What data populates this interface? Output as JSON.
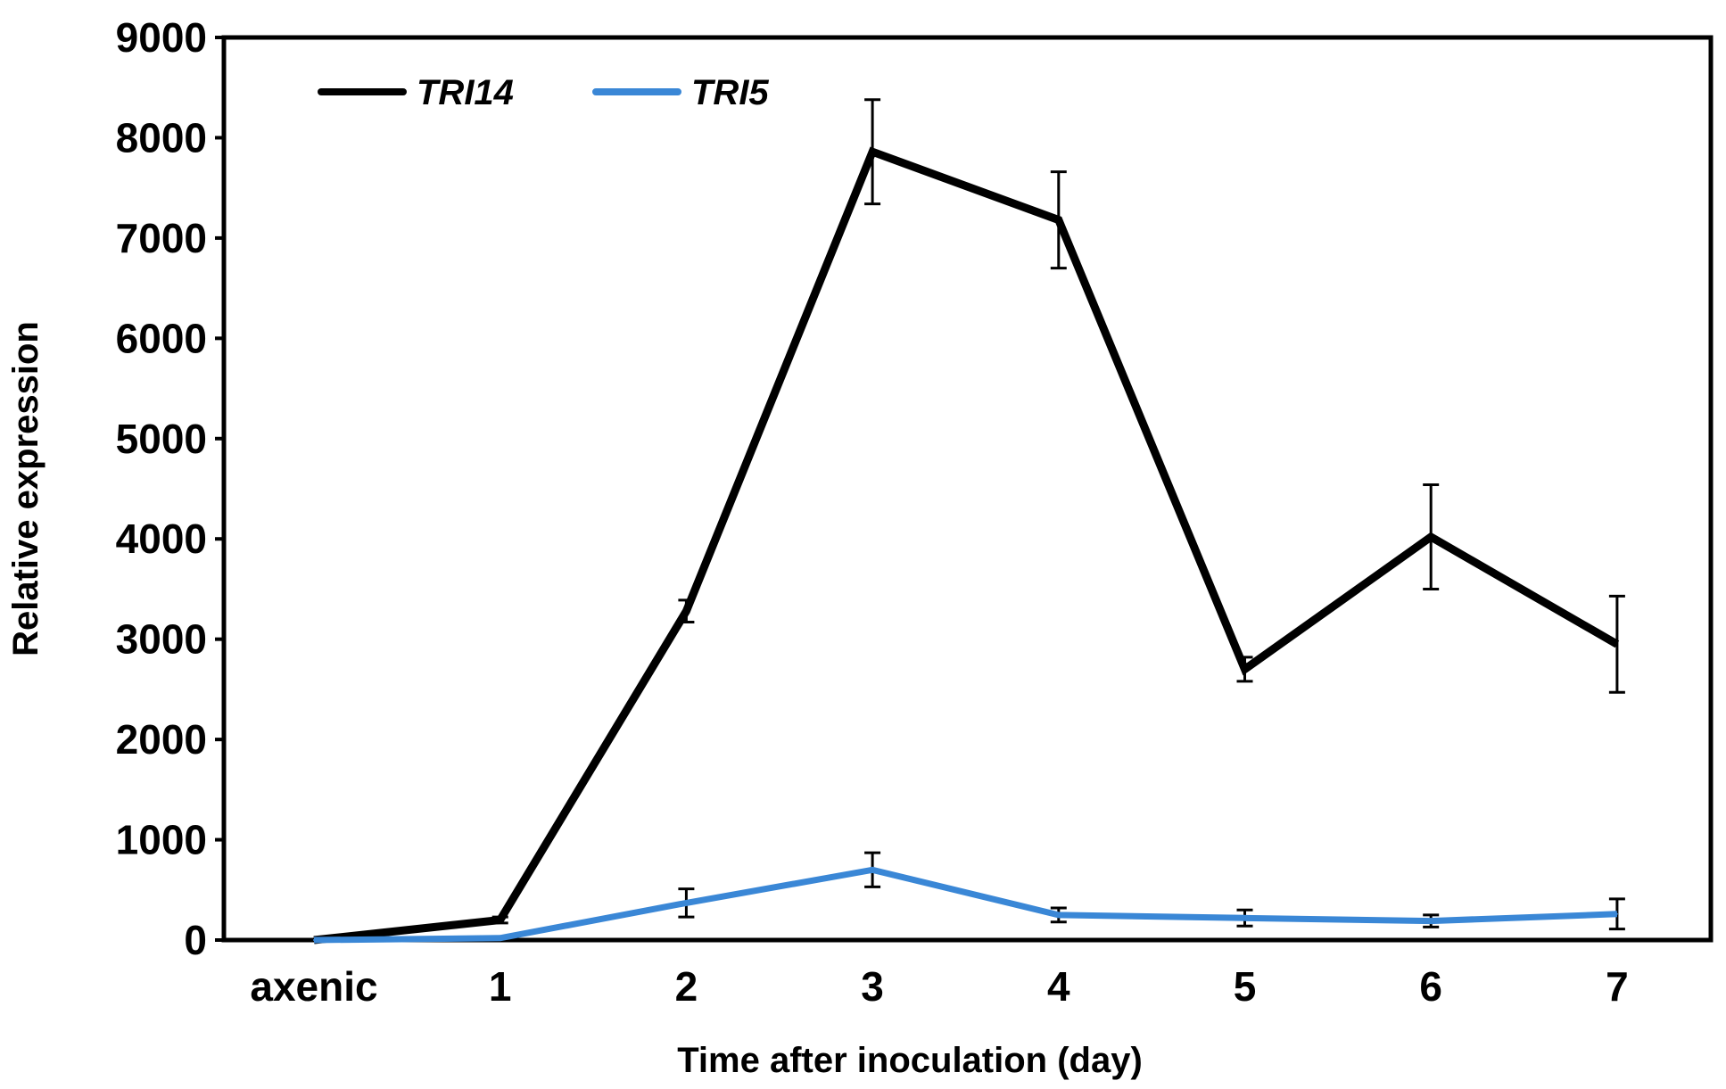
{
  "chart_data": {
    "type": "line",
    "title": "",
    "xlabel": "Time after inoculation (day)",
    "ylabel": "Relative expression",
    "categories": [
      "axenic",
      "1",
      "2",
      "3",
      "4",
      "5",
      "6",
      "7"
    ],
    "ylim": [
      0,
      9000
    ],
    "yticks": [
      "0",
      "1000",
      "2000",
      "3000",
      "4000",
      "5000",
      "6000",
      "7000",
      "8000",
      "9000"
    ],
    "grid": false,
    "legend_position": "top-left",
    "series": [
      {
        "name": "TRI14",
        "color": "#000000",
        "values": [
          0,
          200,
          3280,
          7860,
          7180,
          2700,
          4020,
          2950
        ],
        "errors": [
          0,
          30,
          110,
          520,
          480,
          120,
          520,
          480
        ]
      },
      {
        "name": "TRI5",
        "color": "#3a87d6",
        "values": [
          0,
          20,
          370,
          700,
          250,
          220,
          190,
          260
        ],
        "errors": [
          0,
          10,
          140,
          170,
          70,
          80,
          60,
          150
        ]
      }
    ]
  }
}
